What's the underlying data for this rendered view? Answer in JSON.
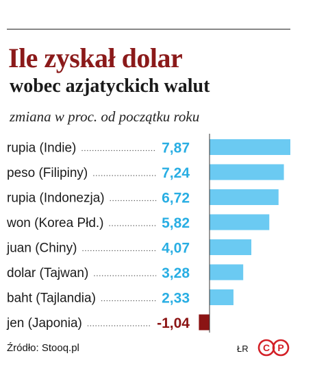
{
  "title": "Ile zyskał dolar",
  "subtitle": "wobec azjatyckich walut",
  "caption": "zmiana w proc. od początku roku",
  "source": "Źródło: Stooq.pl",
  "author": "ŁR",
  "logo": {
    "name": "cp-logo",
    "letters": [
      "C",
      "P"
    ],
    "color": "#d32027"
  },
  "colors": {
    "positive_bar": "#6bcaf2",
    "negative_bar": "#8b1414",
    "positive_value": "#29aee3",
    "negative_value": "#8b1414",
    "axis": "#333333"
  },
  "chart_data": {
    "type": "bar",
    "orientation": "horizontal",
    "categories": [
      "rupia (Indie)",
      "peso (Filipiny)",
      "rupia (Indonezja)",
      "won (Korea Płd.)",
      "juan (Chiny)",
      "dolar (Tajwan)",
      "baht (Tajlandia)",
      "jen (Japonia)"
    ],
    "values": [
      7.87,
      7.24,
      6.72,
      5.82,
      4.07,
      3.28,
      2.33,
      -1.04
    ],
    "value_labels": [
      "7,87",
      "7,24",
      "6,72",
      "5,82",
      "4,07",
      "3,28",
      "2,33",
      "-1,04"
    ],
    "xlim": [
      -1.04,
      7.87
    ],
    "grid": false,
    "legend": "none"
  }
}
